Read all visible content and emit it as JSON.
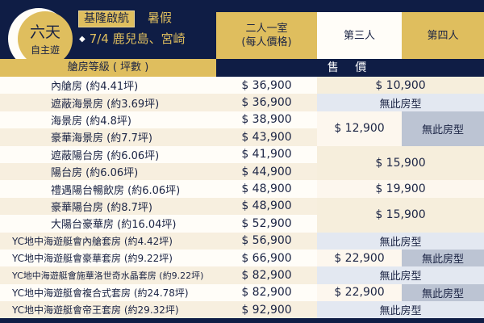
{
  "header": {
    "logo": {
      "line1": "六天",
      "line2": "自主遊"
    },
    "tag": "基隆啟航",
    "season": "暑假",
    "route": "7/4 鹿兒島、宮崎",
    "col_twin": [
      "二人一室",
      "(每人價格)"
    ],
    "col_third": "第三人",
    "col_fourth": "第四人",
    "col_room": "艙房等級 ( 坪數 )",
    "col_price": "售 價"
  },
  "colors": {
    "navy": "#0f1d45",
    "gold": "#dfbe5e",
    "cream": "#f6eedc",
    "no_room_blue": "#e3e8f1",
    "no_room_gray": "#bcc4d3"
  },
  "rows": [
    {
      "name": "內艙房 (約4.41坪)",
      "price": "$ 36,900"
    },
    {
      "name": "遮蔽海景房 (約3.69坪)",
      "price": "$ 36,900"
    },
    {
      "name": "海景房 (約4.8坪)",
      "price": "$ 38,900"
    },
    {
      "name": "豪華海景房 (約7.7坪)",
      "price": "$ 43,900"
    },
    {
      "name": "遮蔽陽台房 (約6.06坪)",
      "price": "$ 41,900"
    },
    {
      "name": "陽台房 (約6.06坪)",
      "price": "$ 44,900"
    },
    {
      "name": "禮遇陽台暢飲房 (約6.06坪)",
      "price": "$ 48,900"
    },
    {
      "name": "豪華陽台房 (約8.7坪)",
      "price": "$ 48,900"
    },
    {
      "name": "大陽台豪華房 (約16.04坪)",
      "price": "$ 52,900"
    },
    {
      "name": "YC地中海遊艇會內艙套房 (約4.42坪)",
      "price": "$ 56,900"
    },
    {
      "name": "YC地中海遊艇會豪華套房 (約9.22坪)",
      "price": "$ 66,900"
    },
    {
      "name": "YC地中海遊艇會施華洛世奇水晶套房 (約9.22坪)",
      "price": "$ 82,900"
    },
    {
      "name": "YC地中海遊艇會複合式套房 (約24.78坪)",
      "price": "$ 82,900"
    },
    {
      "name": "YC地中海遊艇會帝王套房 (約29.32坪)",
      "price": "$ 92,900"
    }
  ],
  "extra": {
    "r1": "$ 10,900",
    "r2": "無此房型",
    "r3_third": "$ 12,900",
    "r3_fourth": "無此房型",
    "r5": "$ 15,900",
    "r7": "$ 19,900",
    "r8": "$ 15,900",
    "r10": "無此房型",
    "r11_third": "$ 22,900",
    "r11_fourth": "無此房型",
    "r12": "無此房型",
    "r13_third": "$ 22,900",
    "r13_fourth": "無此房型",
    "r14": "無此房型"
  }
}
